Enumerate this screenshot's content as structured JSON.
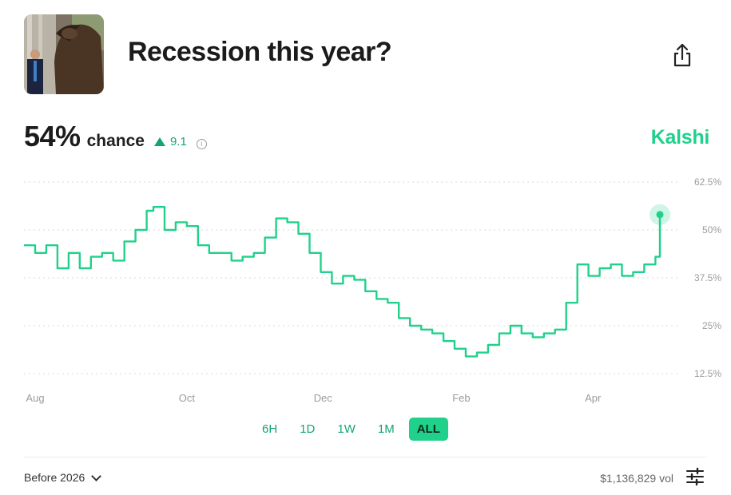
{
  "header": {
    "title": "Recession this year?"
  },
  "stats": {
    "percent": "54%",
    "label": "chance",
    "delta": "9.1"
  },
  "brand": {
    "name": "Kalshi"
  },
  "range_buttons": [
    "6H",
    "1D",
    "1W",
    "1M",
    "ALL"
  ],
  "active_range": "ALL",
  "footer": {
    "filter_label": "Before 2026",
    "volume": "$1,136,829 vol"
  },
  "colors": {
    "accent": "#21d18b",
    "accent_dark": "#10a86f",
    "grid": "#d8d8d8"
  },
  "icons": {
    "share": "share-icon",
    "settings": "sliders-icon",
    "info": "info-icon",
    "dropdown": "chevron-down-icon"
  },
  "chart_data": {
    "type": "line",
    "x_ticks": [
      "Aug",
      "Oct",
      "Dec",
      "Feb",
      "Apr"
    ],
    "y_ticks": [
      "62.5%",
      "50%",
      "37.5%",
      "25%",
      "12.5%"
    ],
    "ylim": [
      12.5,
      62.5
    ],
    "grid": true,
    "series": [
      {
        "points": [
          [
            "Jul 20",
            46
          ],
          [
            "Jul 25",
            44
          ],
          [
            "Jul 30",
            46
          ],
          [
            "Aug 4",
            40
          ],
          [
            "Aug 9",
            44
          ],
          [
            "Aug 14",
            40
          ],
          [
            "Aug 19",
            43
          ],
          [
            "Aug 24",
            44
          ],
          [
            "Aug 29",
            42
          ],
          [
            "Sep 3",
            47
          ],
          [
            "Sep 8",
            50
          ],
          [
            "Sep 13",
            55
          ],
          [
            "Sep 16",
            56
          ],
          [
            "Sep 21",
            50
          ],
          [
            "Sep 26",
            52
          ],
          [
            "Oct 1",
            51
          ],
          [
            "Oct 6",
            46
          ],
          [
            "Oct 11",
            44
          ],
          [
            "Oct 16",
            44
          ],
          [
            "Oct 21",
            42
          ],
          [
            "Oct 26",
            43
          ],
          [
            "Oct 31",
            44
          ],
          [
            "Nov 5",
            48
          ],
          [
            "Nov 10",
            53
          ],
          [
            "Nov 15",
            52
          ],
          [
            "Nov 20",
            49
          ],
          [
            "Nov 25",
            44
          ],
          [
            "Nov 30",
            39
          ],
          [
            "Dec 5",
            36
          ],
          [
            "Dec 10",
            38
          ],
          [
            "Dec 15",
            37
          ],
          [
            "Dec 20",
            34
          ],
          [
            "Dec 25",
            32
          ],
          [
            "Dec 30",
            31
          ],
          [
            "Jan 4",
            27
          ],
          [
            "Jan 9",
            25
          ],
          [
            "Jan 14",
            24
          ],
          [
            "Jan 19",
            23
          ],
          [
            "Jan 24",
            21
          ],
          [
            "Jan 29",
            19
          ],
          [
            "Feb 3",
            17
          ],
          [
            "Feb 8",
            18
          ],
          [
            "Feb 13",
            20
          ],
          [
            "Feb 18",
            23
          ],
          [
            "Feb 23",
            25
          ],
          [
            "Feb 28",
            23
          ],
          [
            "Mar 5",
            22
          ],
          [
            "Mar 10",
            23
          ],
          [
            "Mar 15",
            24
          ],
          [
            "Mar 20",
            31
          ],
          [
            "Mar 25",
            41
          ],
          [
            "Mar 30",
            38
          ],
          [
            "Apr 4",
            40
          ],
          [
            "Apr 9",
            41
          ],
          [
            "Apr 14",
            38
          ],
          [
            "Apr 19",
            39
          ],
          [
            "Apr 24",
            41
          ],
          [
            "Apr 29",
            43
          ],
          [
            "May 1",
            54
          ]
        ]
      }
    ]
  }
}
